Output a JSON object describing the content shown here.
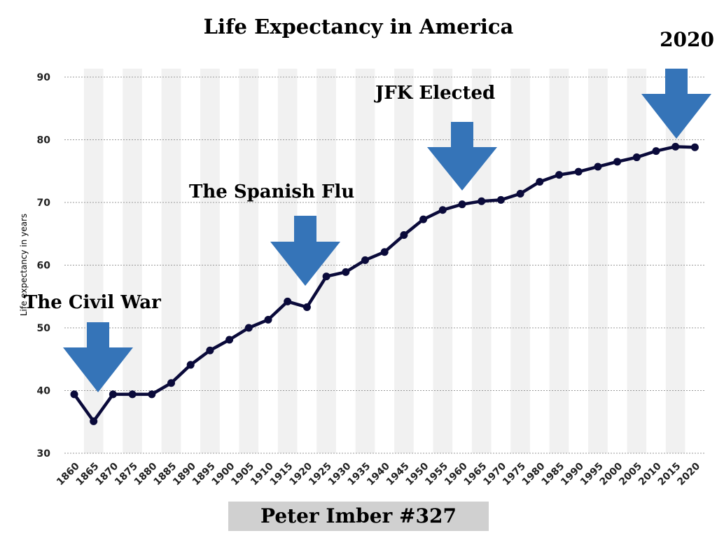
{
  "chart_data": {
    "type": "line",
    "title": "Life Expectancy in America",
    "xlabel": "",
    "ylabel": "Life expectancy in years",
    "ylim": [
      30,
      90
    ],
    "yticks": [
      30,
      40,
      50,
      60,
      70,
      80,
      90
    ],
    "categories": [
      "1860",
      "1865",
      "1870",
      "1875",
      "1880",
      "1885",
      "1890",
      "1895",
      "1900",
      "1905",
      "1910",
      "1915",
      "1920",
      "1925",
      "1930",
      "1935",
      "1940",
      "1945",
      "1950",
      "1955",
      "1960",
      "1965",
      "1970",
      "1975",
      "1980",
      "1985",
      "1990",
      "1995",
      "2000",
      "2005",
      "2010",
      "2015",
      "2020"
    ],
    "series": [
      {
        "name": "Life expectancy",
        "color": "#0a0a3a",
        "values": [
          39.4,
          35.1,
          39.4,
          39.4,
          39.4,
          41.2,
          44.1,
          46.4,
          48.1,
          50.0,
          51.3,
          54.2,
          53.3,
          58.2,
          58.9,
          60.8,
          62.1,
          64.8,
          67.3,
          68.8,
          69.7,
          70.2,
          70.4,
          71.4,
          73.3,
          74.4,
          74.9,
          75.7,
          76.5,
          77.2,
          78.2,
          78.9,
          78.8
        ]
      }
    ],
    "grid": true,
    "annotations": [
      {
        "text": "The Civil War",
        "x": "1865"
      },
      {
        "text": "The Spanish Flu",
        "x": "1920"
      },
      {
        "text": "JFK Elected",
        "x": "1960"
      },
      {
        "text": "2020",
        "x": "2015"
      }
    ],
    "arrow_color": "#3574b8"
  },
  "footer": {
    "credit": "Peter Imber #327"
  }
}
